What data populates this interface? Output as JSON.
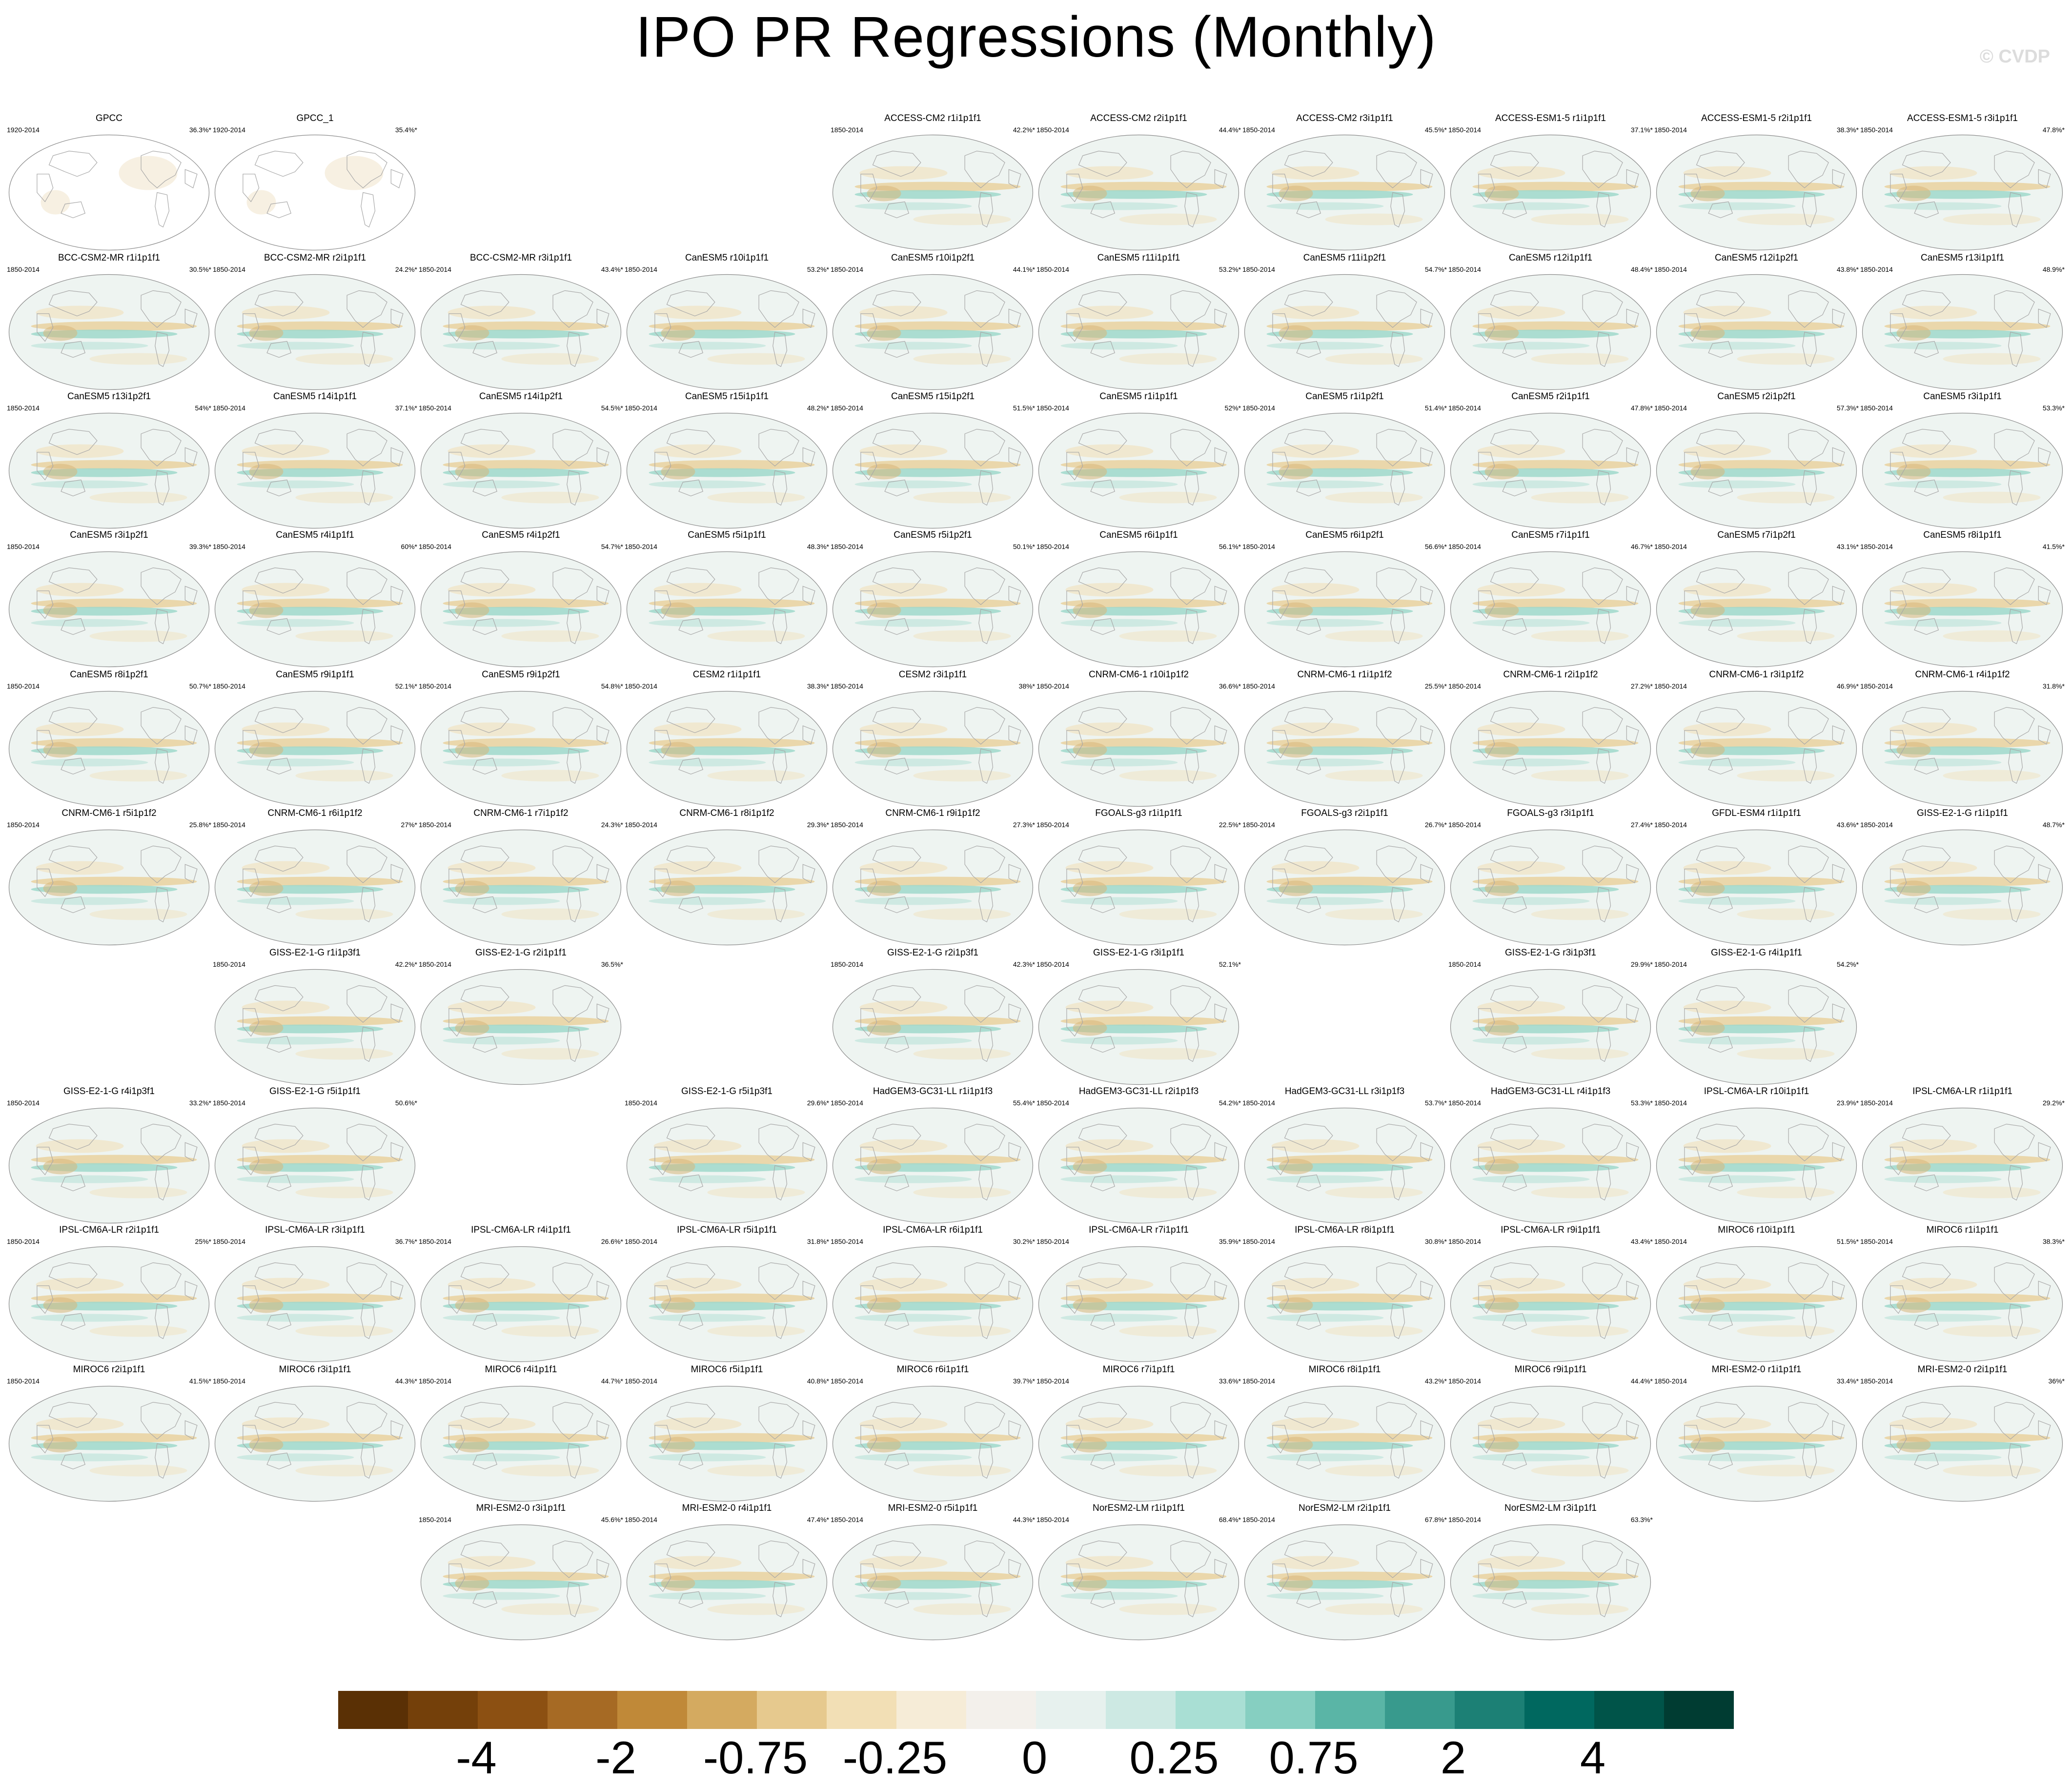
{
  "title": "IPO PR Regressions (Monthly)",
  "credit": "© CVDP",
  "colorbar": {
    "colors": [
      "#5a3005",
      "#74400a",
      "#8c5012",
      "#a66a24",
      "#c08938",
      "#d4aa60",
      "#e6c98e",
      "#f2dfb5",
      "#f6ecd7",
      "#f3f0eb",
      "#e7f1ee",
      "#cde9e3",
      "#a9dfd4",
      "#86cfc1",
      "#5ab5a6",
      "#389a8d",
      "#1c8075",
      "#00685f",
      "#005449",
      "#003c32"
    ],
    "labels": [
      "-4",
      "-2",
      "-0.75",
      "-0.25",
      "0",
      "0.25",
      "0.75",
      "2",
      "4"
    ]
  },
  "panels": [
    {
      "row": 0,
      "col": 0,
      "title": "GPCC",
      "years": "1920-2014",
      "pct": "36.3%*",
      "obs": true
    },
    {
      "row": 0,
      "col": 1,
      "title": "GPCC_1",
      "years": "1920-2014",
      "pct": "35.4%*",
      "obs": true
    },
    {
      "row": 0,
      "col": 4,
      "title": "ACCESS-CM2 r1i1p1f1",
      "years": "1850-2014",
      "pct": "42.2%*"
    },
    {
      "row": 0,
      "col": 5,
      "title": "ACCESS-CM2 r2i1p1f1",
      "years": "1850-2014",
      "pct": "44.4%*"
    },
    {
      "row": 0,
      "col": 6,
      "title": "ACCESS-CM2 r3i1p1f1",
      "years": "1850-2014",
      "pct": "45.5%*"
    },
    {
      "row": 0,
      "col": 7,
      "title": "ACCESS-ESM1-5 r1i1p1f1",
      "years": "1850-2014",
      "pct": "37.1%*"
    },
    {
      "row": 0,
      "col": 8,
      "title": "ACCESS-ESM1-5 r2i1p1f1",
      "years": "1850-2014",
      "pct": "38.3%*"
    },
    {
      "row": 0,
      "col": 9,
      "title": "ACCESS-ESM1-5 r3i1p1f1",
      "years": "1850-2014",
      "pct": "47.8%*"
    },
    {
      "row": 1,
      "col": 0,
      "title": "BCC-CSM2-MR r1i1p1f1",
      "years": "1850-2014",
      "pct": "30.5%*"
    },
    {
      "row": 1,
      "col": 1,
      "title": "BCC-CSM2-MR r2i1p1f1",
      "years": "1850-2014",
      "pct": "24.2%*"
    },
    {
      "row": 1,
      "col": 2,
      "title": "BCC-CSM2-MR r3i1p1f1",
      "years": "1850-2014",
      "pct": "43.4%*"
    },
    {
      "row": 1,
      "col": 3,
      "title": "CanESM5 r10i1p1f1",
      "years": "1850-2014",
      "pct": "53.2%*"
    },
    {
      "row": 1,
      "col": 4,
      "title": "CanESM5 r10i1p2f1",
      "years": "1850-2014",
      "pct": "44.1%*"
    },
    {
      "row": 1,
      "col": 5,
      "title": "CanESM5 r11i1p1f1",
      "years": "1850-2014",
      "pct": "53.2%*"
    },
    {
      "row": 1,
      "col": 6,
      "title": "CanESM5 r11i1p2f1",
      "years": "1850-2014",
      "pct": "54.7%*"
    },
    {
      "row": 1,
      "col": 7,
      "title": "CanESM5 r12i1p1f1",
      "years": "1850-2014",
      "pct": "48.4%*"
    },
    {
      "row": 1,
      "col": 8,
      "title": "CanESM5 r12i1p2f1",
      "years": "1850-2014",
      "pct": "43.8%*"
    },
    {
      "row": 1,
      "col": 9,
      "title": "CanESM5 r13i1p1f1",
      "years": "1850-2014",
      "pct": "48.9%*"
    },
    {
      "row": 2,
      "col": 0,
      "title": "CanESM5 r13i1p2f1",
      "years": "1850-2014",
      "pct": "54%*"
    },
    {
      "row": 2,
      "col": 1,
      "title": "CanESM5 r14i1p1f1",
      "years": "1850-2014",
      "pct": "37.1%*"
    },
    {
      "row": 2,
      "col": 2,
      "title": "CanESM5 r14i1p2f1",
      "years": "1850-2014",
      "pct": "54.5%*"
    },
    {
      "row": 2,
      "col": 3,
      "title": "CanESM5 r15i1p1f1",
      "years": "1850-2014",
      "pct": "48.2%*"
    },
    {
      "row": 2,
      "col": 4,
      "title": "CanESM5 r15i1p2f1",
      "years": "1850-2014",
      "pct": "51.5%*"
    },
    {
      "row": 2,
      "col": 5,
      "title": "CanESM5 r1i1p1f1",
      "years": "1850-2014",
      "pct": "52%*"
    },
    {
      "row": 2,
      "col": 6,
      "title": "CanESM5 r1i1p2f1",
      "years": "1850-2014",
      "pct": "51.4%*"
    },
    {
      "row": 2,
      "col": 7,
      "title": "CanESM5 r2i1p1f1",
      "years": "1850-2014",
      "pct": "47.8%*"
    },
    {
      "row": 2,
      "col": 8,
      "title": "CanESM5 r2i1p2f1",
      "years": "1850-2014",
      "pct": "57.3%*"
    },
    {
      "row": 2,
      "col": 9,
      "title": "CanESM5 r3i1p1f1",
      "years": "1850-2014",
      "pct": "53.3%*"
    },
    {
      "row": 3,
      "col": 0,
      "title": "CanESM5 r3i1p2f1",
      "years": "1850-2014",
      "pct": "39.3%*"
    },
    {
      "row": 3,
      "col": 1,
      "title": "CanESM5 r4i1p1f1",
      "years": "1850-2014",
      "pct": "60%*"
    },
    {
      "row": 3,
      "col": 2,
      "title": "CanESM5 r4i1p2f1",
      "years": "1850-2014",
      "pct": "54.7%*"
    },
    {
      "row": 3,
      "col": 3,
      "title": "CanESM5 r5i1p1f1",
      "years": "1850-2014",
      "pct": "48.3%*"
    },
    {
      "row": 3,
      "col": 4,
      "title": "CanESM5 r5i1p2f1",
      "years": "1850-2014",
      "pct": "50.1%*"
    },
    {
      "row": 3,
      "col": 5,
      "title": "CanESM5 r6i1p1f1",
      "years": "1850-2014",
      "pct": "56.1%*"
    },
    {
      "row": 3,
      "col": 6,
      "title": "CanESM5 r6i1p2f1",
      "years": "1850-2014",
      "pct": "56.6%*"
    },
    {
      "row": 3,
      "col": 7,
      "title": "CanESM5 r7i1p1f1",
      "years": "1850-2014",
      "pct": "46.7%*"
    },
    {
      "row": 3,
      "col": 8,
      "title": "CanESM5 r7i1p2f1",
      "years": "1850-2014",
      "pct": "43.1%*"
    },
    {
      "row": 3,
      "col": 9,
      "title": "CanESM5 r8i1p1f1",
      "years": "1850-2014",
      "pct": "41.5%*"
    },
    {
      "row": 4,
      "col": 0,
      "title": "CanESM5 r8i1p2f1",
      "years": "1850-2014",
      "pct": "50.7%*"
    },
    {
      "row": 4,
      "col": 1,
      "title": "CanESM5 r9i1p1f1",
      "years": "1850-2014",
      "pct": "52.1%*"
    },
    {
      "row": 4,
      "col": 2,
      "title": "CanESM5 r9i1p2f1",
      "years": "1850-2014",
      "pct": "54.8%*"
    },
    {
      "row": 4,
      "col": 3,
      "title": "CESM2 r1i1p1f1",
      "years": "1850-2014",
      "pct": "38.3%*"
    },
    {
      "row": 4,
      "col": 4,
      "title": "CESM2 r3i1p1f1",
      "years": "1850-2014",
      "pct": "38%*"
    },
    {
      "row": 4,
      "col": 5,
      "title": "CNRM-CM6-1 r10i1p1f2",
      "years": "1850-2014",
      "pct": "36.6%*"
    },
    {
      "row": 4,
      "col": 6,
      "title": "CNRM-CM6-1 r1i1p1f2",
      "years": "1850-2014",
      "pct": "25.5%*"
    },
    {
      "row": 4,
      "col": 7,
      "title": "CNRM-CM6-1 r2i1p1f2",
      "years": "1850-2014",
      "pct": "27.2%*"
    },
    {
      "row": 4,
      "col": 8,
      "title": "CNRM-CM6-1 r3i1p1f2",
      "years": "1850-2014",
      "pct": "46.9%*"
    },
    {
      "row": 4,
      "col": 9,
      "title": "CNRM-CM6-1 r4i1p1f2",
      "years": "1850-2014",
      "pct": "31.8%*"
    },
    {
      "row": 5,
      "col": 0,
      "title": "CNRM-CM6-1 r5i1p1f2",
      "years": "1850-2014",
      "pct": "25.8%*"
    },
    {
      "row": 5,
      "col": 1,
      "title": "CNRM-CM6-1 r6i1p1f2",
      "years": "1850-2014",
      "pct": "27%*"
    },
    {
      "row": 5,
      "col": 2,
      "title": "CNRM-CM6-1 r7i1p1f2",
      "years": "1850-2014",
      "pct": "24.3%*"
    },
    {
      "row": 5,
      "col": 3,
      "title": "CNRM-CM6-1 r8i1p1f2",
      "years": "1850-2014",
      "pct": "29.3%*"
    },
    {
      "row": 5,
      "col": 4,
      "title": "CNRM-CM6-1 r9i1p1f2",
      "years": "1850-2014",
      "pct": "27.3%*"
    },
    {
      "row": 5,
      "col": 5,
      "title": "FGOALS-g3 r1i1p1f1",
      "years": "1850-2014",
      "pct": "22.5%*"
    },
    {
      "row": 5,
      "col": 6,
      "title": "FGOALS-g3 r2i1p1f1",
      "years": "1850-2014",
      "pct": "26.7%*"
    },
    {
      "row": 5,
      "col": 7,
      "title": "FGOALS-g3 r3i1p1f1",
      "years": "1850-2014",
      "pct": "27.4%*"
    },
    {
      "row": 5,
      "col": 8,
      "title": "GFDL-ESM4 r1i1p1f1",
      "years": "1850-2014",
      "pct": "43.6%*"
    },
    {
      "row": 5,
      "col": 9,
      "title": "GISS-E2-1-G r1i1p1f1",
      "years": "1850-2014",
      "pct": "48.7%*"
    },
    {
      "row": 6,
      "col": 1,
      "title": "GISS-E2-1-G r1i1p3f1",
      "years": "1850-2014",
      "pct": "42.2%*"
    },
    {
      "row": 6,
      "col": 2,
      "title": "GISS-E2-1-G r2i1p1f1",
      "years": "1850-2014",
      "pct": "36.5%*"
    },
    {
      "row": 6,
      "col": 4,
      "title": "GISS-E2-1-G r2i1p3f1",
      "years": "1850-2014",
      "pct": "42.3%*"
    },
    {
      "row": 6,
      "col": 5,
      "title": "GISS-E2-1-G r3i1p1f1",
      "years": "1850-2014",
      "pct": "52.1%*"
    },
    {
      "row": 6,
      "col": 7,
      "title": "GISS-E2-1-G r3i1p3f1",
      "years": "1850-2014",
      "pct": "29.9%*"
    },
    {
      "row": 6,
      "col": 8,
      "title": "GISS-E2-1-G r4i1p1f1",
      "years": "1850-2014",
      "pct": "54.2%*"
    },
    {
      "row": 7,
      "col": 0,
      "title": "GISS-E2-1-G r4i1p3f1",
      "years": "1850-2014",
      "pct": "33.2%*"
    },
    {
      "row": 7,
      "col": 1,
      "title": "GISS-E2-1-G r5i1p1f1",
      "years": "1850-2014",
      "pct": "50.6%*"
    },
    {
      "row": 7,
      "col": 3,
      "title": "GISS-E2-1-G r5i1p3f1",
      "years": "1850-2014",
      "pct": "29.6%*"
    },
    {
      "row": 7,
      "col": 4,
      "title": "HadGEM3-GC31-LL r1i1p1f3",
      "years": "1850-2014",
      "pct": "55.4%*"
    },
    {
      "row": 7,
      "col": 5,
      "title": "HadGEM3-GC31-LL r2i1p1f3",
      "years": "1850-2014",
      "pct": "54.2%*"
    },
    {
      "row": 7,
      "col": 6,
      "title": "HadGEM3-GC31-LL r3i1p1f3",
      "years": "1850-2014",
      "pct": "53.7%*"
    },
    {
      "row": 7,
      "col": 7,
      "title": "HadGEM3-GC31-LL r4i1p1f3",
      "years": "1850-2014",
      "pct": "53.3%*"
    },
    {
      "row": 7,
      "col": 8,
      "title": "IPSL-CM6A-LR r10i1p1f1",
      "years": "1850-2014",
      "pct": "23.9%*"
    },
    {
      "row": 7,
      "col": 9,
      "title": "IPSL-CM6A-LR r1i1p1f1",
      "years": "1850-2014",
      "pct": "29.2%*"
    },
    {
      "row": 8,
      "col": 0,
      "title": "IPSL-CM6A-LR r2i1p1f1",
      "years": "1850-2014",
      "pct": "25%*"
    },
    {
      "row": 8,
      "col": 1,
      "title": "IPSL-CM6A-LR r3i1p1f1",
      "years": "1850-2014",
      "pct": "36.7%*"
    },
    {
      "row": 8,
      "col": 2,
      "title": "IPSL-CM6A-LR r4i1p1f1",
      "years": "1850-2014",
      "pct": "26.6%*"
    },
    {
      "row": 8,
      "col": 3,
      "title": "IPSL-CM6A-LR r5i1p1f1",
      "years": "1850-2014",
      "pct": "31.8%*"
    },
    {
      "row": 8,
      "col": 4,
      "title": "IPSL-CM6A-LR r6i1p1f1",
      "years": "1850-2014",
      "pct": "30.2%*"
    },
    {
      "row": 8,
      "col": 5,
      "title": "IPSL-CM6A-LR r7i1p1f1",
      "years": "1850-2014",
      "pct": "35.9%*"
    },
    {
      "row": 8,
      "col": 6,
      "title": "IPSL-CM6A-LR r8i1p1f1",
      "years": "1850-2014",
      "pct": "30.8%*"
    },
    {
      "row": 8,
      "col": 7,
      "title": "IPSL-CM6A-LR r9i1p1f1",
      "years": "1850-2014",
      "pct": "43.4%*"
    },
    {
      "row": 8,
      "col": 8,
      "title": "MIROC6 r10i1p1f1",
      "years": "1850-2014",
      "pct": "51.5%*"
    },
    {
      "row": 8,
      "col": 9,
      "title": "MIROC6 r1i1p1f1",
      "years": "1850-2014",
      "pct": "38.3%*"
    },
    {
      "row": 9,
      "col": 0,
      "title": "MIROC6 r2i1p1f1",
      "years": "1850-2014",
      "pct": "41.5%*"
    },
    {
      "row": 9,
      "col": 1,
      "title": "MIROC6 r3i1p1f1",
      "years": "1850-2014",
      "pct": "44.3%*"
    },
    {
      "row": 9,
      "col": 2,
      "title": "MIROC6 r4i1p1f1",
      "years": "1850-2014",
      "pct": "44.7%*"
    },
    {
      "row": 9,
      "col": 3,
      "title": "MIROC6 r5i1p1f1",
      "years": "1850-2014",
      "pct": "40.8%*"
    },
    {
      "row": 9,
      "col": 4,
      "title": "MIROC6 r6i1p1f1",
      "years": "1850-2014",
      "pct": "39.7%*"
    },
    {
      "row": 9,
      "col": 5,
      "title": "MIROC6 r7i1p1f1",
      "years": "1850-2014",
      "pct": "33.6%*"
    },
    {
      "row": 9,
      "col": 6,
      "title": "MIROC6 r8i1p1f1",
      "years": "1850-2014",
      "pct": "43.2%*"
    },
    {
      "row": 9,
      "col": 7,
      "title": "MIROC6 r9i1p1f1",
      "years": "1850-2014",
      "pct": "44.4%*"
    },
    {
      "row": 9,
      "col": 8,
      "title": "MRI-ESM2-0 r1i1p1f1",
      "years": "1850-2014",
      "pct": "33.4%*"
    },
    {
      "row": 9,
      "col": 9,
      "title": "MRI-ESM2-0 r2i1p1f1",
      "years": "1850-2014",
      "pct": "36%*"
    },
    {
      "row": 10,
      "col": 2,
      "title": "MRI-ESM2-0 r3i1p1f1",
      "years": "1850-2014",
      "pct": "45.6%*"
    },
    {
      "row": 10,
      "col": 3,
      "title": "MRI-ESM2-0 r4i1p1f1",
      "years": "1850-2014",
      "pct": "47.4%*"
    },
    {
      "row": 10,
      "col": 4,
      "title": "MRI-ESM2-0 r5i1p1f1",
      "years": "1850-2014",
      "pct": "44.3%*"
    },
    {
      "row": 10,
      "col": 5,
      "title": "NorESM2-LM r1i1p1f1",
      "years": "1850-2014",
      "pct": "68.4%*"
    },
    {
      "row": 10,
      "col": 6,
      "title": "NorESM2-LM r2i1p1f1",
      "years": "1850-2014",
      "pct": "67.8%*"
    },
    {
      "row": 10,
      "col": 7,
      "title": "NorESM2-LM r3i1p1f1",
      "years": "1850-2014",
      "pct": "63.3%*"
    }
  ]
}
